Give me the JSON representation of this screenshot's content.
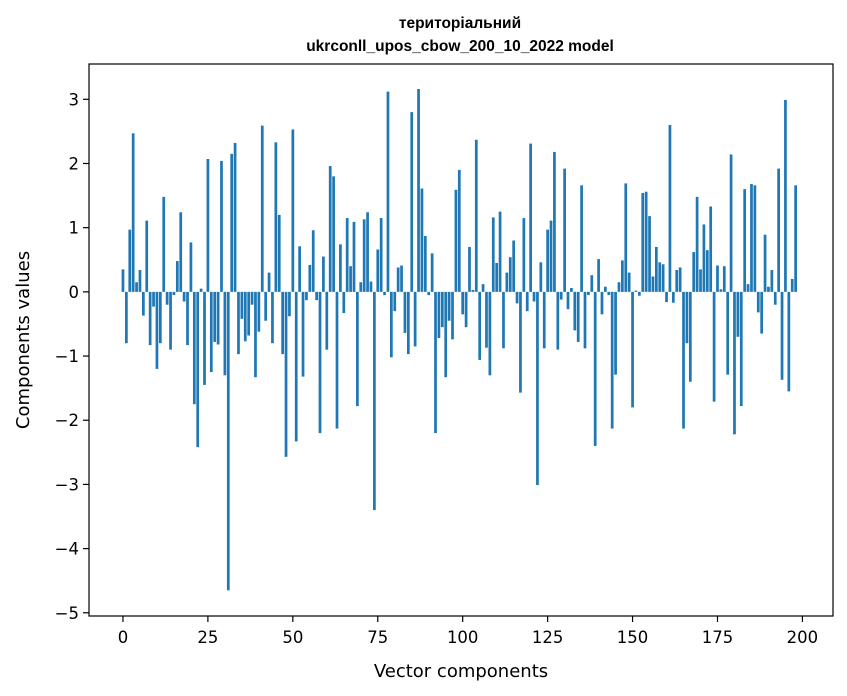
{
  "chart_data": {
    "type": "bar",
    "title": "територіальний",
    "subtitle": "ukrconll_upos_cbow_200_10_2022 model",
    "xlabel": "Vector components",
    "ylabel": "Components values",
    "xlim": [
      -10,
      209
    ],
    "ylim": [
      -5.05,
      3.55
    ],
    "xticks": [
      0,
      25,
      50,
      75,
      100,
      125,
      150,
      175,
      200
    ],
    "xtick_labels": [
      "0",
      "25",
      "50",
      "75",
      "100",
      "125",
      "150",
      "175",
      "200"
    ],
    "yticks": [
      -5,
      -4,
      -3,
      -2,
      -1,
      0,
      1,
      2,
      3
    ],
    "ytick_labels": [
      "−5",
      "−4",
      "−3",
      "−2",
      "−1",
      "0",
      "1",
      "2",
      "3"
    ],
    "bar_color": "#1f77b4",
    "grid": false,
    "legend": false,
    "values": [
      0.35,
      -0.8,
      0.97,
      2.47,
      0.15,
      0.34,
      -0.37,
      1.11,
      -0.83,
      -0.23,
      -1.2,
      -0.8,
      1.48,
      -0.2,
      -0.9,
      -0.05,
      0.48,
      1.24,
      -0.15,
      -0.83,
      0.77,
      -1.75,
      -2.42,
      0.05,
      -1.45,
      2.07,
      -1.25,
      -0.78,
      -0.82,
      2.04,
      -1.3,
      -4.65,
      2.15,
      2.32,
      -0.97,
      -0.42,
      -0.77,
      -0.68,
      -0.2,
      -1.33,
      -0.62,
      2.59,
      -0.45,
      0.3,
      -0.8,
      2.33,
      1.2,
      -0.97,
      -2.57,
      -0.38,
      2.53,
      -2.33,
      0.71,
      -1.32,
      -0.13,
      0.42,
      0.96,
      -0.13,
      -2.2,
      0.55,
      -0.9,
      1.96,
      1.8,
      -2.13,
      0.74,
      -0.33,
      1.15,
      0.4,
      1.09,
      -1.78,
      0.15,
      1.13,
      1.24,
      0.16,
      -3.4,
      0.66,
      1.15,
      -0.05,
      3.12,
      -1.02,
      -0.3,
      0.38,
      0.41,
      -0.64,
      -0.97,
      2.8,
      -0.85,
      3.16,
      1.61,
      0.87,
      -0.05,
      0.6,
      -2.2,
      -0.72,
      -0.55,
      -1.33,
      -0.45,
      -0.74,
      1.59,
      1.9,
      -0.35,
      -0.55,
      0.7,
      0.03,
      2.37,
      -1.06,
      0.12,
      -0.87,
      -1.3,
      1.16,
      0.45,
      1.25,
      -0.88,
      0.3,
      0.54,
      0.8,
      -0.18,
      -1.57,
      1.15,
      -0.3,
      2.31,
      -0.15,
      -3.01,
      0.46,
      -0.88,
      0.97,
      1.11,
      2.18,
      -0.9,
      -0.12,
      1.92,
      -0.27,
      0.06,
      -0.6,
      -0.78,
      1.66,
      -0.88,
      -0.05,
      0.26,
      -2.4,
      0.51,
      -0.35,
      0.08,
      -0.05,
      -2.13,
      -1.29,
      0.15,
      0.49,
      1.69,
      0.3,
      -1.8,
      0.02,
      -0.06,
      1.54,
      1.56,
      1.18,
      0.24,
      0.7,
      0.46,
      0.43,
      -0.16,
      2.6,
      -0.17,
      0.34,
      0.38,
      -2.13,
      -0.8,
      -1.4,
      0.62,
      1.48,
      0.35,
      1.05,
      0.65,
      1.33,
      -1.71,
      0.41,
      0.04,
      0.4,
      -1.29,
      2.14,
      -2.22,
      -0.7,
      -1.78,
      1.6,
      0.12,
      1.68,
      1.66,
      -0.32,
      -0.65,
      0.89,
      0.08,
      0.34,
      -0.2,
      1.92,
      -1.37,
      2.99,
      -1.55,
      0.2,
      1.66
    ]
  }
}
